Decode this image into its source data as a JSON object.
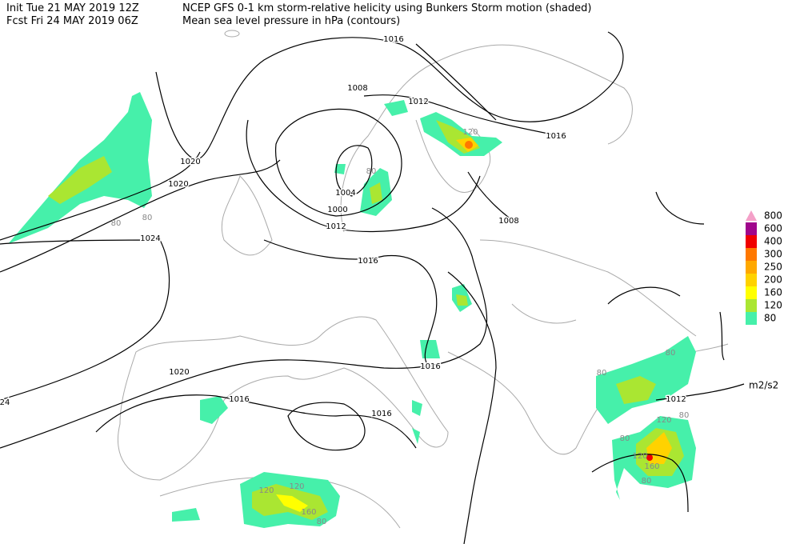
{
  "header": {
    "init": "Init  Tue 21 MAY 2019 12Z",
    "title": "NCEP GFS 0-1 km storm-relative helicity using Bunkers Storm motion (shaded)",
    "fcst": "Fcst Fri 24 MAY 2019 06Z",
    "subtitle": "Mean sea level pressure in hPa (contours)"
  },
  "legend": {
    "unit": "m2/s2",
    "levels": [
      {
        "label": "800",
        "color": "#f4a0c8"
      },
      {
        "label": "600",
        "color": "#a0068c"
      },
      {
        "label": "400",
        "color": "#f00000"
      },
      {
        "label": "300",
        "color": "#ff7800"
      },
      {
        "label": "250",
        "color": "#ffa800"
      },
      {
        "label": "200",
        "color": "#ffd200"
      },
      {
        "label": "160",
        "color": "#ffff00"
      },
      {
        "label": "120",
        "color": "#aae632"
      },
      {
        "label": "80",
        "color": "#46f0aa"
      }
    ]
  },
  "contour_labels": [
    "1016",
    "1008",
    "1012",
    "1016",
    "1020",
    "1020",
    "1004",
    "1000",
    "1012",
    "1008",
    "1024",
    "1016",
    "1016",
    "1020",
    "1016",
    "1016",
    "1012",
    "24"
  ],
  "shading_labels": [
    "120",
    "80",
    "80",
    "80",
    "80",
    "80",
    "120",
    "80",
    "80",
    "120",
    "160",
    "80",
    "120",
    "120",
    "160",
    "80"
  ]
}
